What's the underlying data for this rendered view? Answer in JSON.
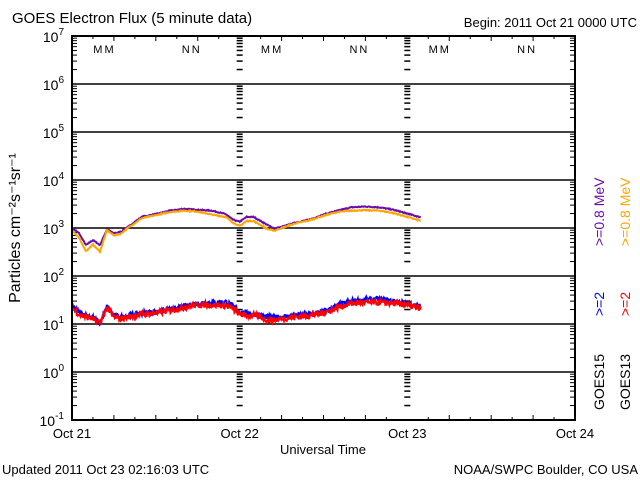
{
  "chart_data": {
    "type": "line",
    "title": "GOES Electron Flux (5 minute data)",
    "begin_label": "Begin: 2011 Oct 21 0000 UTC",
    "xlabel": "Universal Time",
    "ylabel": "Particles cm⁻²s⁻¹sr⁻¹",
    "x_tick_labels": [
      "Oct 21",
      "Oct 22",
      "Oct 23",
      "Oct 24"
    ],
    "xlim_hours": [
      0,
      72
    ],
    "ylim_log10": [
      -1,
      7
    ],
    "y_tick_exponents": [
      7,
      6,
      5,
      4,
      3,
      2,
      1,
      0,
      -1
    ],
    "threshold": 1000,
    "footer_left": "Updated 2011 Oct 23 02:16:03 UTC",
    "footer_right": "NOAA/SWPC Boulder, CO USA",
    "legend": {
      "goes15": "GOES15",
      "goes13": "GOES13",
      "g15_08": ">=0.8 MeV",
      "g13_08": ">=0.8 MeV",
      "g15_2": ">=2",
      "g13_2": ">=2",
      "colors": {
        "g15_08": "#6a0dad",
        "g13_08": "#ffa500",
        "g15_2": "#0000ff",
        "g13_2": "#ff0000"
      }
    },
    "markers": [
      {
        "label": "M",
        "hour": 4.5
      },
      {
        "label": "N",
        "hour": 17.0
      },
      {
        "label": "M",
        "hour": 28.5
      },
      {
        "label": "N",
        "hour": 41.0
      },
      {
        "label": "M",
        "hour": 52.5
      },
      {
        "label": "N",
        "hour": 65.0
      }
    ],
    "hours": [
      0,
      1,
      2,
      3,
      4,
      5,
      6,
      7,
      8,
      10,
      12,
      14,
      16,
      18,
      20,
      22,
      23,
      24,
      25,
      26,
      27,
      28,
      29,
      30,
      32,
      34,
      36,
      38,
      40,
      42,
      44,
      46,
      48,
      50
    ],
    "series": [
      {
        "name": "GOES15 >=0.8 MeV",
        "color": "#6a0dad",
        "noise": 0.01,
        "values": [
          1000,
          780,
          440,
          560,
          440,
          930,
          780,
          830,
          1050,
          1700,
          1950,
          2300,
          2500,
          2400,
          2300,
          1950,
          1500,
          1350,
          1700,
          1700,
          1400,
          1150,
          970,
          1050,
          1300,
          1500,
          1900,
          2300,
          2700,
          2800,
          2700,
          2400,
          2000,
          1650
        ]
      },
      {
        "name": "GOES13 >=0.8 MeV",
        "color": "#ffa500",
        "noise": 0.01,
        "values": [
          900,
          620,
          330,
          450,
          320,
          900,
          700,
          760,
          1000,
          1600,
          1850,
          2150,
          2300,
          2200,
          1900,
          1700,
          1300,
          1100,
          1400,
          1400,
          1150,
          950,
          880,
          1000,
          1250,
          1450,
          1800,
          2150,
          2300,
          2350,
          2300,
          2050,
          1700,
          1400
        ]
      },
      {
        "name": "GOES15 >=2 MeV",
        "color": "#0000ff",
        "noise": 0.05,
        "values": [
          23,
          18,
          15,
          14,
          10,
          23,
          15,
          14,
          15,
          17,
          18,
          20,
          23,
          27,
          28,
          29,
          24,
          18,
          17,
          16,
          15,
          14,
          14,
          14,
          15,
          16,
          18,
          24,
          30,
          32,
          33,
          30,
          27,
          23
        ]
      },
      {
        "name": "GOES13 >=2 MeV",
        "color": "#ff0000",
        "noise": 0.06,
        "values": [
          22,
          16,
          14,
          13,
          10,
          22,
          14,
          13,
          14,
          16,
          17,
          19,
          22,
          25,
          25,
          24,
          21,
          16,
          15,
          15,
          14,
          12,
          12,
          13,
          14,
          15,
          17,
          22,
          27,
          28,
          28,
          27,
          25,
          21
        ]
      }
    ]
  }
}
